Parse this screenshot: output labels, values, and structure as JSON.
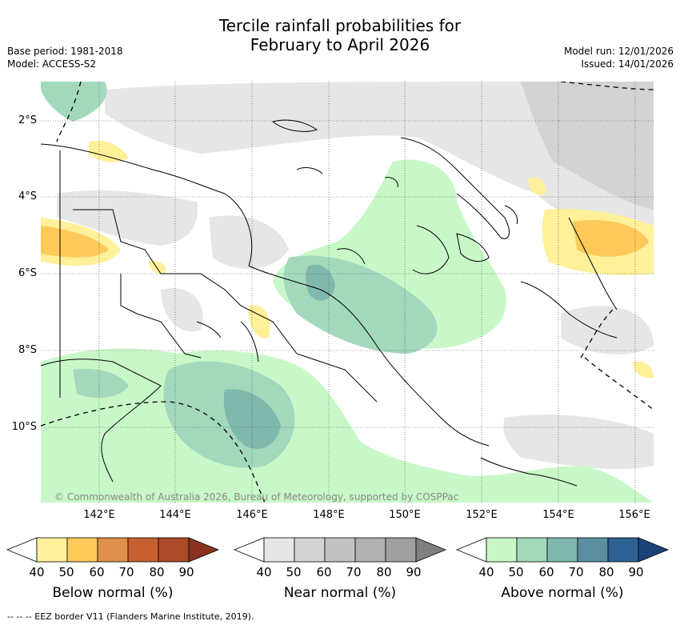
{
  "title_line1": "Tercile rainfall probabilities for",
  "title_line2": "February to April 2026",
  "meta": {
    "base_period": "Base period: 1981-2018",
    "model": "Model: ACCESS-S2",
    "model_run": "Model run: 12/01/2026",
    "issued": "Issued: 14/01/2026"
  },
  "axes": {
    "lon_ticks": [
      "142°E",
      "144°E",
      "146°E",
      "148°E",
      "150°E",
      "152°E",
      "154°E",
      "156°E"
    ],
    "lat_ticks": [
      "2°S",
      "4°S",
      "6°S",
      "8°S",
      "10°S"
    ]
  },
  "copyright": "© Commonwealth of Australia 2026, Bureau of Meteorology, supported by COSPPac",
  "colorbars": [
    {
      "title": "Below normal (%)",
      "labels": [
        "40",
        "50",
        "60",
        "70",
        "80",
        "90"
      ],
      "colors": [
        "#fff09a",
        "#fdca5a",
        "#e0904a",
        "#c76030",
        "#ab4a28",
        "#8a3220"
      ]
    },
    {
      "title": "Near normal (%)",
      "labels": [
        "40",
        "50",
        "60",
        "70",
        "80",
        "90"
      ],
      "colors": [
        "#e6e6e6",
        "#d3d3d3",
        "#c2c2c2",
        "#b0b0b0",
        "#a0a0a0",
        "#7f7f7f"
      ]
    },
    {
      "title": "Above normal (%)",
      "labels": [
        "40",
        "50",
        "60",
        "70",
        "80",
        "90"
      ],
      "colors": [
        "#c8f8c8",
        "#a3d8bc",
        "#7fb8ac",
        "#5a8fa0",
        "#2f6092",
        "#1c4278"
      ]
    }
  ],
  "eez_note": "--  --  -- EEZ border V11 (Flanders Marine Institute, 2019).",
  "colors": {
    "below_normal": "#fdca5a",
    "near_normal": "#d3d3d3",
    "above_normal": "#c8f8c8"
  }
}
